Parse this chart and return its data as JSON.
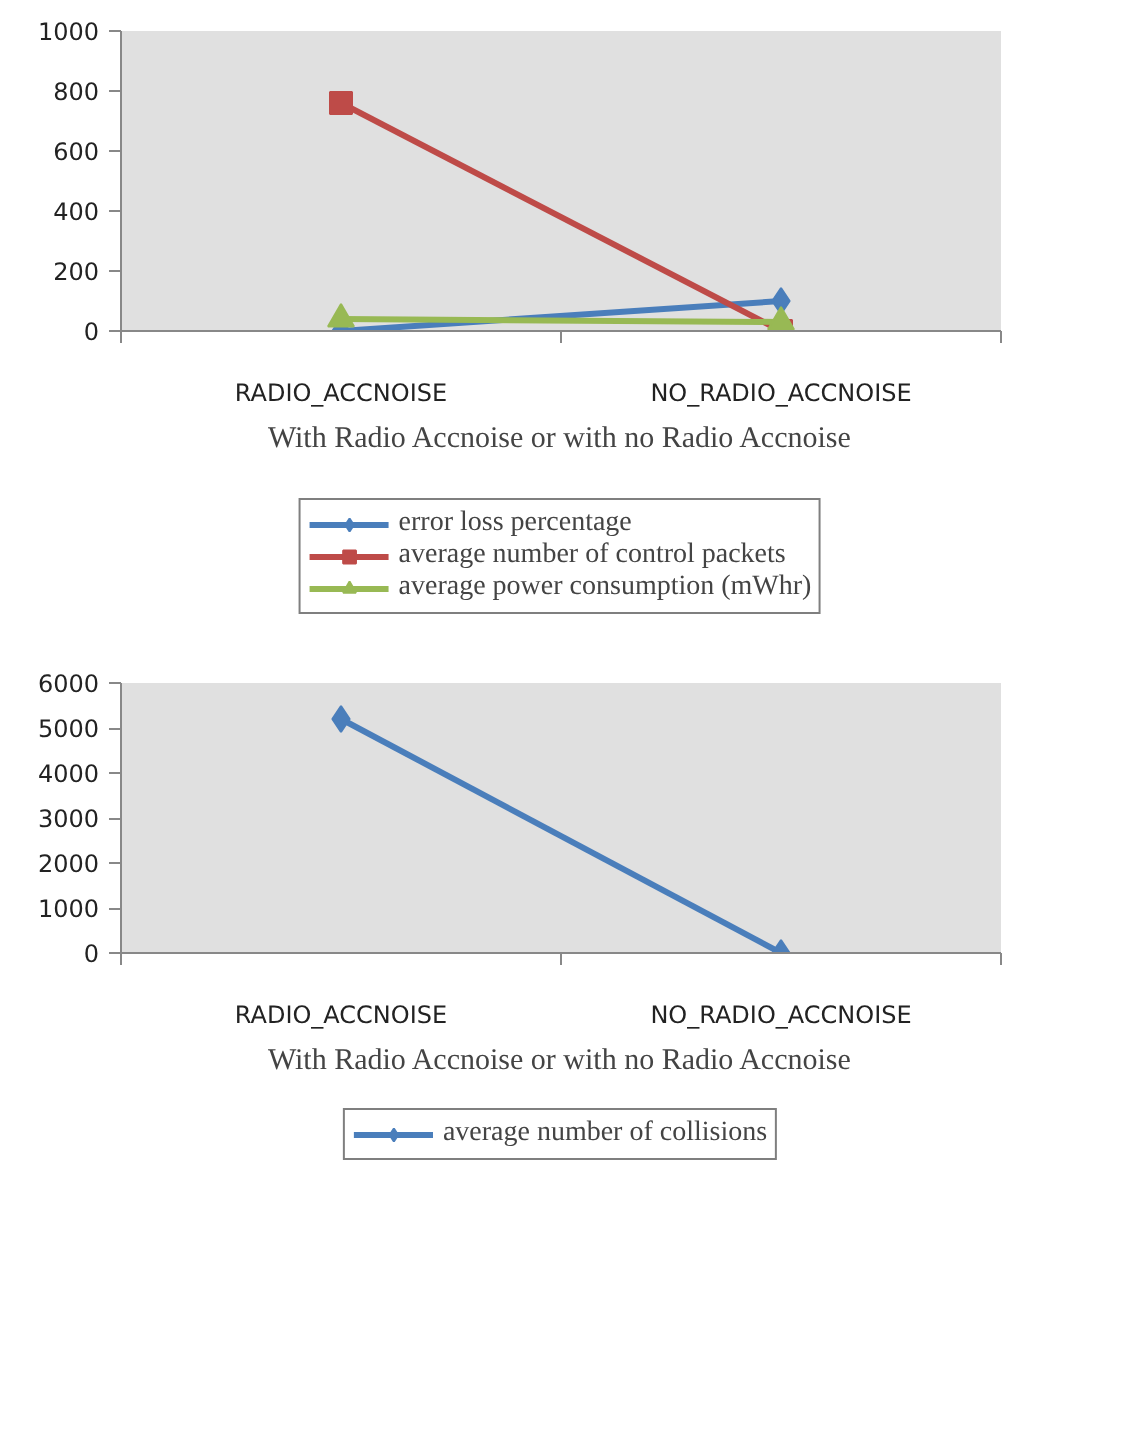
{
  "chart_data": [
    {
      "type": "line",
      "categories": [
        "RADIO_ACCNOISE",
        "NO_RADIO_ACCNOISE"
      ],
      "xlabel": "With Radio Accnoise or with no Radio Accnoise",
      "ylim": [
        0,
        1000
      ],
      "yticks": [
        0,
        200,
        400,
        600,
        800,
        1000
      ],
      "grid": false,
      "legend": "bottom",
      "series": [
        {
          "name": "error loss percentage",
          "color": "#4a7ebb",
          "marker": "diamond",
          "values": [
            0,
            100
          ]
        },
        {
          "name": "average number of control packets",
          "color": "#be4b48",
          "marker": "square",
          "values": [
            760,
            0
          ]
        },
        {
          "name": "average power consumption (mWhr)",
          "color": "#98b954",
          "marker": "triangle",
          "values": [
            40,
            30
          ]
        }
      ]
    },
    {
      "type": "line",
      "categories": [
        "RADIO_ACCNOISE",
        "NO_RADIO_ACCNOISE"
      ],
      "xlabel": "With Radio Accnoise or with no Radio Accnoise",
      "ylim": [
        0,
        6000
      ],
      "yticks": [
        0,
        1000,
        2000,
        3000,
        4000,
        5000,
        6000
      ],
      "grid": false,
      "legend": "bottom",
      "series": [
        {
          "name": "average number of collisions",
          "color": "#4a7ebb",
          "marker": "diamond",
          "values": [
            5200,
            0
          ]
        }
      ]
    }
  ]
}
